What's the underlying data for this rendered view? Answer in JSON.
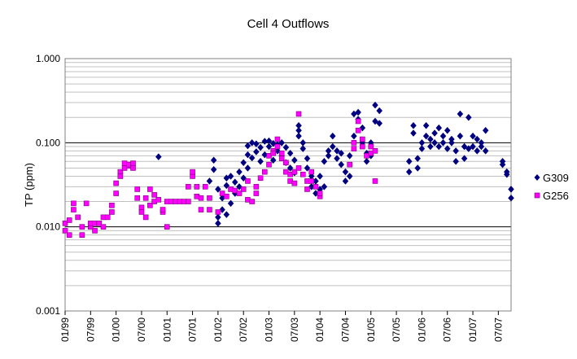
{
  "chart_data": {
    "type": "scatter",
    "title": "Cell 4 Outflows",
    "xlabel": "",
    "ylabel": "TP (ppm)",
    "y_scale": "log",
    "ylim": [
      0.001,
      1.0
    ],
    "y_ticks": [
      "0.001",
      "0.010",
      "0.100",
      "1.000"
    ],
    "x_ticks": [
      "01/99",
      "07/99",
      "01/00",
      "07/00",
      "01/01",
      "07/01",
      "01/02",
      "07/02",
      "01/03",
      "07/03",
      "01/04",
      "07/04",
      "01/05",
      "07/05",
      "01/06",
      "07/06",
      "01/07",
      "07/07"
    ],
    "xlim": [
      "1999-01",
      "2007-10"
    ],
    "grid": "horizontal major and minor",
    "legend": "right",
    "series": [
      {
        "name": "G309",
        "color": "#000080",
        "marker": "diamond",
        "points": [
          [
            "2000-11",
            0.068
          ],
          [
            "2001-11",
            0.035
          ],
          [
            "2001-12",
            0.048
          ],
          [
            "2001-12",
            0.062
          ],
          [
            "2002-01",
            0.028
          ],
          [
            "2002-01",
            0.013
          ],
          [
            "2002-01",
            0.011
          ],
          [
            "2002-02",
            0.016
          ],
          [
            "2002-02",
            0.022
          ],
          [
            "2002-03",
            0.014
          ],
          [
            "2002-03",
            0.031
          ],
          [
            "2002-03",
            0.038
          ],
          [
            "2002-04",
            0.019
          ],
          [
            "2002-04",
            0.04
          ],
          [
            "2002-05",
            0.025
          ],
          [
            "2002-05",
            0.034
          ],
          [
            "2002-06",
            0.03
          ],
          [
            "2002-06",
            0.045
          ],
          [
            "2002-07",
            0.038
          ],
          [
            "2002-07",
            0.058
          ],
          [
            "2002-08",
            0.05
          ],
          [
            "2002-08",
            0.072
          ],
          [
            "2002-08",
            0.092
          ],
          [
            "2002-09",
            0.066
          ],
          [
            "2002-09",
            0.1
          ],
          [
            "2002-10",
            0.078
          ],
          [
            "2002-10",
            0.097
          ],
          [
            "2002-11",
            0.06
          ],
          [
            "2002-11",
            0.088
          ],
          [
            "2002-12",
            0.072
          ],
          [
            "2002-12",
            0.104
          ],
          [
            "2003-01",
            0.09
          ],
          [
            "2003-01",
            0.105
          ],
          [
            "2003-02",
            0.062
          ],
          [
            "2003-02",
            0.098
          ],
          [
            "2003-03",
            0.08
          ],
          [
            "2003-03",
            0.095
          ],
          [
            "2003-04",
            0.07
          ],
          [
            "2003-04",
            0.1
          ],
          [
            "2003-05",
            0.058
          ],
          [
            "2003-05",
            0.088
          ],
          [
            "2003-06",
            0.05
          ],
          [
            "2003-06",
            0.075
          ],
          [
            "2003-07",
            0.044
          ],
          [
            "2003-07",
            0.062
          ],
          [
            "2003-08",
            0.16
          ],
          [
            "2003-08",
            0.14
          ],
          [
            "2003-08",
            0.12
          ],
          [
            "2003-09",
            0.1
          ],
          [
            "2003-09",
            0.085
          ],
          [
            "2003-10",
            0.05
          ],
          [
            "2003-10",
            0.065
          ],
          [
            "2003-11",
            0.03
          ],
          [
            "2003-11",
            0.04
          ],
          [
            "2003-12",
            0.025
          ],
          [
            "2003-12",
            0.035
          ],
          [
            "2004-01",
            0.028
          ],
          [
            "2004-01",
            0.04
          ],
          [
            "2004-02",
            0.03
          ],
          [
            "2004-02",
            0.06
          ],
          [
            "2004-03",
            0.07
          ],
          [
            "2004-03",
            0.08
          ],
          [
            "2004-04",
            0.09
          ],
          [
            "2004-04",
            0.12
          ],
          [
            "2004-05",
            0.08
          ],
          [
            "2004-05",
            0.065
          ],
          [
            "2004-06",
            0.055
          ],
          [
            "2004-06",
            0.075
          ],
          [
            "2004-07",
            0.035
          ],
          [
            "2004-07",
            0.045
          ],
          [
            "2004-08",
            0.04
          ],
          [
            "2004-08",
            0.07
          ],
          [
            "2004-09",
            0.12
          ],
          [
            "2004-09",
            0.22
          ],
          [
            "2004-10",
            0.23
          ],
          [
            "2004-10",
            0.19
          ],
          [
            "2004-11",
            0.15
          ],
          [
            "2004-11",
            0.1
          ],
          [
            "2004-12",
            0.075
          ],
          [
            "2004-12",
            0.06
          ],
          [
            "2005-01",
            0.07
          ],
          [
            "2005-01",
            0.1
          ],
          [
            "2005-02",
            0.28
          ],
          [
            "2005-02",
            0.18
          ],
          [
            "2005-03",
            0.24
          ],
          [
            "2005-03",
            0.17
          ],
          [
            "2005-10",
            0.045
          ],
          [
            "2005-10",
            0.06
          ],
          [
            "2005-11",
            0.16
          ],
          [
            "2005-11",
            0.13
          ],
          [
            "2005-12",
            0.05
          ],
          [
            "2005-12",
            0.065
          ],
          [
            "2006-01",
            0.085
          ],
          [
            "2006-01",
            0.1
          ],
          [
            "2006-02",
            0.12
          ],
          [
            "2006-02",
            0.16
          ],
          [
            "2006-03",
            0.09
          ],
          [
            "2006-03",
            0.11
          ],
          [
            "2006-04",
            0.13
          ],
          [
            "2006-04",
            0.1
          ],
          [
            "2006-05",
            0.15
          ],
          [
            "2006-05",
            0.09
          ],
          [
            "2006-06",
            0.12
          ],
          [
            "2006-06",
            0.1
          ],
          [
            "2006-07",
            0.14
          ],
          [
            "2006-07",
            0.085
          ],
          [
            "2006-08",
            0.11
          ],
          [
            "2006-08",
            0.1
          ],
          [
            "2006-09",
            0.06
          ],
          [
            "2006-09",
            0.08
          ],
          [
            "2006-10",
            0.22
          ],
          [
            "2006-10",
            0.12
          ],
          [
            "2006-11",
            0.09
          ],
          [
            "2006-11",
            0.065
          ],
          [
            "2006-12",
            0.2
          ],
          [
            "2006-12",
            0.085
          ],
          [
            "2007-01",
            0.12
          ],
          [
            "2007-01",
            0.09
          ],
          [
            "2007-02",
            0.11
          ],
          [
            "2007-02",
            0.08
          ],
          [
            "2007-03",
            0.1
          ],
          [
            "2007-03",
            0.09
          ],
          [
            "2007-04",
            0.14
          ],
          [
            "2007-04",
            0.08
          ],
          [
            "2007-08",
            0.06
          ],
          [
            "2007-08",
            0.055
          ],
          [
            "2007-09",
            0.045
          ],
          [
            "2007-09",
            0.042
          ],
          [
            "2007-10",
            0.028
          ],
          [
            "2007-10",
            0.022
          ]
        ]
      },
      {
        "name": "G256",
        "color": "#ff00ff",
        "marker": "square",
        "points": [
          [
            "1999-01",
            0.009
          ],
          [
            "1999-01",
            0.011
          ],
          [
            "1999-02",
            0.012
          ],
          [
            "1999-02",
            0.008
          ],
          [
            "1999-03",
            0.019
          ],
          [
            "1999-03",
            0.016
          ],
          [
            "1999-04",
            0.013
          ],
          [
            "1999-05",
            0.008
          ],
          [
            "1999-05",
            0.01
          ],
          [
            "1999-06",
            0.019
          ],
          [
            "1999-07",
            0.01
          ],
          [
            "1999-07",
            0.011
          ],
          [
            "1999-08",
            0.009
          ],
          [
            "1999-08",
            0.011
          ],
          [
            "1999-09",
            0.011
          ],
          [
            "1999-10",
            0.01
          ],
          [
            "1999-10",
            0.013
          ],
          [
            "1999-11",
            0.013
          ],
          [
            "1999-12",
            0.015
          ],
          [
            "1999-12",
            0.018
          ],
          [
            "2000-01",
            0.033
          ],
          [
            "2000-01",
            0.025
          ],
          [
            "2000-02",
            0.045
          ],
          [
            "2000-02",
            0.04
          ],
          [
            "2000-03",
            0.057
          ],
          [
            "2000-03",
            0.05
          ],
          [
            "2000-04",
            0.053
          ],
          [
            "2000-04",
            0.055
          ],
          [
            "2000-05",
            0.05
          ],
          [
            "2000-05",
            0.057
          ],
          [
            "2000-06",
            0.028
          ],
          [
            "2000-06",
            0.022
          ],
          [
            "2000-07",
            0.017
          ],
          [
            "2000-07",
            0.015
          ],
          [
            "2000-08",
            0.022
          ],
          [
            "2000-08",
            0.013
          ],
          [
            "2000-09",
            0.028
          ],
          [
            "2000-09",
            0.018
          ],
          [
            "2000-10",
            0.02
          ],
          [
            "2000-10",
            0.024
          ],
          [
            "2000-11",
            0.021
          ],
          [
            "2000-12",
            0.015
          ],
          [
            "2000-12",
            0.016
          ],
          [
            "2001-01",
            0.01
          ],
          [
            "2001-01",
            0.02
          ],
          [
            "2001-02",
            0.02
          ],
          [
            "2001-03",
            0.02
          ],
          [
            "2001-04",
            0.02
          ],
          [
            "2001-05",
            0.02
          ],
          [
            "2001-06",
            0.02
          ],
          [
            "2001-06",
            0.03
          ],
          [
            "2001-07",
            0.04
          ],
          [
            "2001-07",
            0.045
          ],
          [
            "2001-08",
            0.023
          ],
          [
            "2001-08",
            0.03
          ],
          [
            "2001-09",
            0.016
          ],
          [
            "2001-09",
            0.022
          ],
          [
            "2001-10",
            0.03
          ],
          [
            "2001-11",
            0.016
          ],
          [
            "2001-11",
            0.022
          ],
          [
            "2002-01",
            0.015
          ],
          [
            "2002-02",
            0.025
          ],
          [
            "2002-03",
            0.023
          ],
          [
            "2002-04",
            0.028
          ],
          [
            "2002-05",
            0.027
          ],
          [
            "2002-06",
            0.025
          ],
          [
            "2002-07",
            0.028
          ],
          [
            "2002-08",
            0.021
          ],
          [
            "2002-08",
            0.035
          ],
          [
            "2002-09",
            0.02
          ],
          [
            "2002-10",
            0.025
          ],
          [
            "2002-10",
            0.03
          ],
          [
            "2002-11",
            0.038
          ],
          [
            "2002-12",
            0.045
          ],
          [
            "2003-01",
            0.07
          ],
          [
            "2003-01",
            0.055
          ],
          [
            "2003-02",
            0.08
          ],
          [
            "2003-02",
            0.075
          ],
          [
            "2003-03",
            0.11
          ],
          [
            "2003-03",
            0.09
          ],
          [
            "2003-04",
            0.075
          ],
          [
            "2003-04",
            0.065
          ],
          [
            "2003-05",
            0.058
          ],
          [
            "2003-05",
            0.045
          ],
          [
            "2003-06",
            0.042
          ],
          [
            "2003-06",
            0.035
          ],
          [
            "2003-07",
            0.033
          ],
          [
            "2003-07",
            0.045
          ],
          [
            "2003-08",
            0.22
          ],
          [
            "2003-08",
            0.05
          ],
          [
            "2003-09",
            0.042
          ],
          [
            "2003-10",
            0.028
          ],
          [
            "2003-10",
            0.035
          ],
          [
            "2003-11",
            0.035
          ],
          [
            "2003-11",
            0.045
          ],
          [
            "2003-12",
            0.03
          ],
          [
            "2004-01",
            0.023
          ],
          [
            "2004-01",
            0.025
          ],
          [
            "2004-08",
            0.055
          ],
          [
            "2004-09",
            0.1
          ],
          [
            "2004-09",
            0.085
          ],
          [
            "2004-10",
            0.14
          ],
          [
            "2004-10",
            0.18
          ],
          [
            "2004-11",
            0.09
          ],
          [
            "2004-11",
            0.11
          ],
          [
            "2004-12",
            0.07
          ],
          [
            "2005-01",
            0.075
          ],
          [
            "2005-01",
            0.09
          ],
          [
            "2005-02",
            0.035
          ],
          [
            "2005-02",
            0.08
          ]
        ]
      }
    ]
  }
}
